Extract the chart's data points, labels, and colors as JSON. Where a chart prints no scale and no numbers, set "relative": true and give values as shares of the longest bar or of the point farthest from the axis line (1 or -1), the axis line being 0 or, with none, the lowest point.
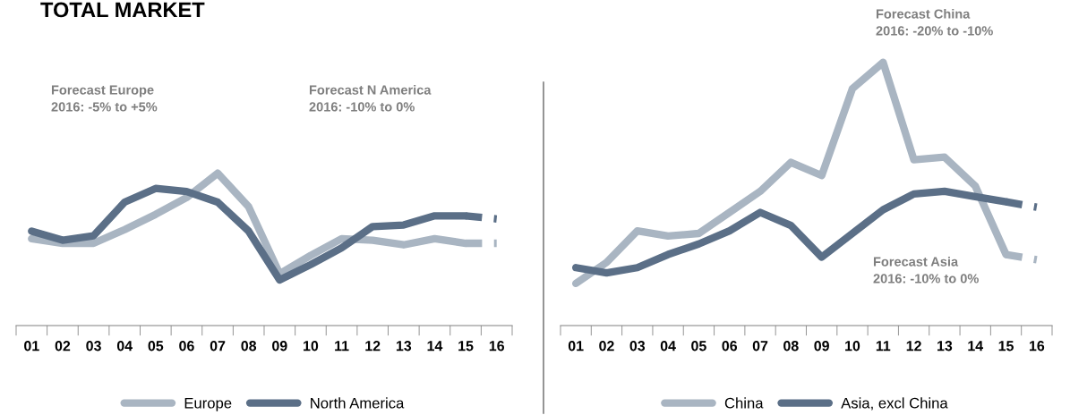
{
  "chart_data": [
    {
      "type": "line",
      "title": "TOTAL MARKET",
      "relative": true,
      "legend": "bottom",
      "grid": false,
      "line_style": "solid",
      "marker": "none",
      "categories": [
        "01",
        "02",
        "03",
        "04",
        "05",
        "06",
        "07",
        "08",
        "09",
        "10",
        "11",
        "12",
        "13",
        "14",
        "15",
        "16"
      ],
      "annotations": [
        "Forecast Europe\n2016: -5% to +5%",
        "Forecast N America\n2016: -10% to 0%"
      ],
      "series": [
        {
          "name": "Europe",
          "color": "#a9b5c2",
          "values": [
            0.57,
            0.54,
            0.54,
            0.63,
            0.73,
            0.84,
            1.0,
            0.78,
            0.34,
            0.46,
            0.57,
            0.56,
            0.53,
            0.57,
            0.54,
            null
          ]
        },
        {
          "name": "North America",
          "color": "#5b6f87",
          "values": [
            0.62,
            0.56,
            0.59,
            0.81,
            0.9,
            0.88,
            0.81,
            0.62,
            0.3,
            0.4,
            0.51,
            0.65,
            0.66,
            0.72,
            0.72,
            null
          ]
        },
        {
          "color": "#a9b5c2",
          "line_style": "dashed",
          "values": [
            null,
            null,
            null,
            null,
            null,
            null,
            null,
            null,
            null,
            null,
            null,
            null,
            null,
            null,
            0.54,
            0.54
          ]
        },
        {
          "color": "#5b6f87",
          "line_style": "dashed",
          "values": [
            null,
            null,
            null,
            null,
            null,
            null,
            null,
            null,
            null,
            null,
            null,
            null,
            null,
            null,
            0.72,
            0.7
          ]
        }
      ]
    },
    {
      "type": "line",
      "relative": true,
      "legend": "bottom",
      "grid": false,
      "line_style": "solid",
      "marker": "none",
      "categories": [
        "01",
        "02",
        "03",
        "04",
        "05",
        "06",
        "07",
        "08",
        "09",
        "10",
        "11",
        "12",
        "13",
        "14",
        "15",
        "16"
      ],
      "annotations": [
        "Forecast China\n2016: -20% to -10%",
        "Forecast Asia\n2016: -10% to 0%"
      ],
      "series": [
        {
          "name": "China",
          "color": "#a9b5c2",
          "values": [
            0.16,
            0.24,
            0.36,
            0.34,
            0.35,
            0.43,
            0.51,
            0.62,
            0.57,
            0.9,
            1.0,
            0.63,
            0.64,
            0.53,
            0.27,
            null
          ]
        },
        {
          "name": "Asia, excl China",
          "color": "#5b6f87",
          "values": [
            0.22,
            0.2,
            0.22,
            0.27,
            0.31,
            0.36,
            0.43,
            0.38,
            0.26,
            0.35,
            0.44,
            0.5,
            0.51,
            0.49,
            0.47,
            null
          ]
        },
        {
          "color": "#a9b5c2",
          "line_style": "dashed",
          "values": [
            null,
            null,
            null,
            null,
            null,
            null,
            null,
            null,
            null,
            null,
            null,
            null,
            null,
            null,
            0.27,
            0.25
          ]
        },
        {
          "color": "#5b6f87",
          "line_style": "dashed",
          "values": [
            null,
            null,
            null,
            null,
            null,
            null,
            null,
            null,
            null,
            null,
            null,
            null,
            null,
            null,
            0.47,
            0.45
          ]
        }
      ]
    }
  ]
}
